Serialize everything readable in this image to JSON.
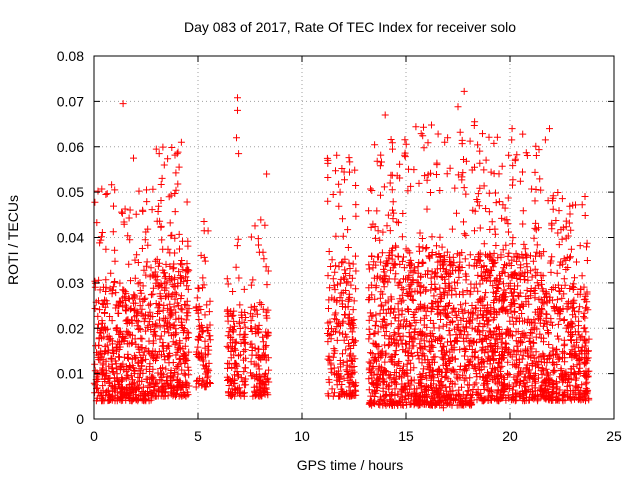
{
  "chart_data": {
    "type": "scatter",
    "title": "Day 083 of 2017, Rate Of TEC Index for receiver solo",
    "xlabel": "GPS time / hours",
    "ylabel": "ROTI / TECUs",
    "xlim": [
      0,
      25
    ],
    "ylim": [
      0,
      0.08
    ],
    "xticks": [
      "0",
      "5",
      "10",
      "15",
      "20",
      "25"
    ],
    "yticks": [
      "0",
      "0.01",
      "0.02",
      "0.03",
      "0.04",
      "0.05",
      "0.06",
      "0.07",
      "0.08"
    ],
    "grid": true,
    "marker": "+",
    "color": "#ff0000",
    "clusters": [
      {
        "x": [
          0.0,
          2.8
        ],
        "y": [
          0.004,
          0.052
        ],
        "n": 520
      },
      {
        "x": [
          2.8,
          4.6
        ],
        "y": [
          0.005,
          0.06
        ],
        "n": 380
      },
      {
        "x": [
          4.9,
          5.6
        ],
        "y": [
          0.007,
          0.044
        ],
        "n": 90
      },
      {
        "x": [
          6.4,
          7.3
        ],
        "y": [
          0.005,
          0.04
        ],
        "n": 130
      },
      {
        "x": [
          7.5,
          8.4
        ],
        "y": [
          0.005,
          0.044
        ],
        "n": 130
      },
      {
        "x": [
          11.2,
          12.6
        ],
        "y": [
          0.005,
          0.06
        ],
        "n": 230
      },
      {
        "x": [
          13.2,
          18.5
        ],
        "y": [
          0.003,
          0.065
        ],
        "n": 1150
      },
      {
        "x": [
          18.5,
          21.6
        ],
        "y": [
          0.004,
          0.063
        ],
        "n": 720
      },
      {
        "x": [
          21.6,
          23.8
        ],
        "y": [
          0.004,
          0.05
        ],
        "n": 430
      }
    ],
    "outliers": [
      {
        "x": 1.4,
        "y": 0.0695
      },
      {
        "x": 1.9,
        "y": 0.0575
      },
      {
        "x": 6.9,
        "y": 0.0708
      },
      {
        "x": 6.9,
        "y": 0.068
      },
      {
        "x": 6.85,
        "y": 0.062
      },
      {
        "x": 6.95,
        "y": 0.0585
      },
      {
        "x": 8.3,
        "y": 0.054
      },
      {
        "x": 14.0,
        "y": 0.067
      },
      {
        "x": 17.8,
        "y": 0.0722
      },
      {
        "x": 17.5,
        "y": 0.0688
      },
      {
        "x": 17.0,
        "y": 0.062
      },
      {
        "x": 18.3,
        "y": 0.0655
      },
      {
        "x": 20.1,
        "y": 0.064
      },
      {
        "x": 21.9,
        "y": 0.064
      },
      {
        "x": 21.7,
        "y": 0.0615
      },
      {
        "x": 4.2,
        "y": 0.061
      },
      {
        "x": 4.0,
        "y": 0.0585
      },
      {
        "x": 16.8,
        "y": 0.0025
      },
      {
        "x": 5.3,
        "y": 0.0415
      }
    ]
  }
}
